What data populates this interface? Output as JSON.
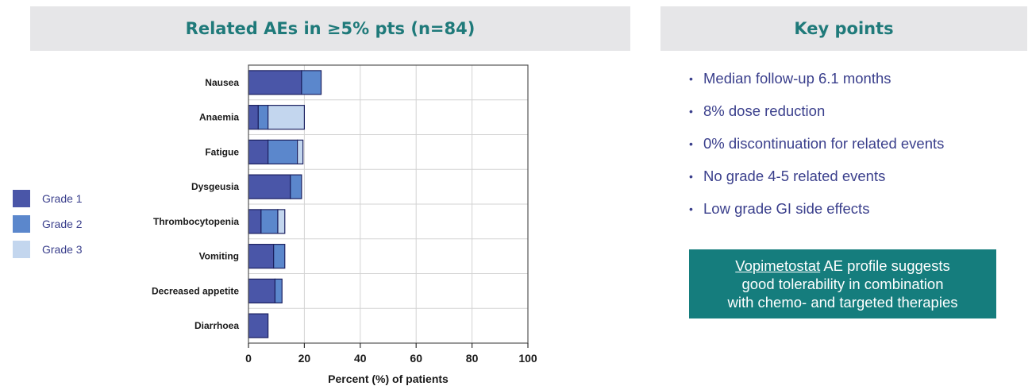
{
  "left_panel": {
    "title": "Related AEs in ≥5% pts (n=84)"
  },
  "right_panel": {
    "title": "Key points",
    "bullets": [
      "Median follow-up 6.1 months",
      "8% dose reduction",
      "0% discontinuation for related events",
      "No grade 4-5 related events",
      "Low grade GI side effects"
    ],
    "callout": {
      "underlined": "Vopimetostat",
      "line1_rest": " AE profile suggests",
      "line2": "good tolerability in combination",
      "line3": "with chemo- and targeted therapies"
    }
  },
  "legend": [
    {
      "label": "Grade 1",
      "color": "#4a56a8"
    },
    {
      "label": "Grade 2",
      "color": "#5b87cc"
    },
    {
      "label": "Grade 3",
      "color": "#c3d6ee"
    }
  ],
  "chart_data": {
    "type": "bar",
    "orientation": "horizontal",
    "stacked": true,
    "categories": [
      "Nausea",
      "Anaemia",
      "Fatigue",
      "Dysgeusia",
      "Thrombocytopenia",
      "Vomiting",
      "Decreased appetite",
      "Diarrhoea"
    ],
    "series": [
      {
        "name": "Grade 1",
        "values": [
          19,
          3.5,
          7,
          15,
          4.5,
          9,
          9.5,
          7
        ]
      },
      {
        "name": "Grade 2",
        "values": [
          7,
          3.5,
          10.5,
          4,
          6,
          4,
          2.5,
          0
        ]
      },
      {
        "name": "Grade 3",
        "values": [
          0,
          13,
          2,
          0,
          2.5,
          0,
          0,
          0
        ]
      }
    ],
    "xlabel": "Percent (%) of patients",
    "ylabel": "",
    "xlim": [
      0,
      100
    ],
    "xticks": [
      0,
      20,
      40,
      60,
      80,
      100
    ],
    "grid": true,
    "legend_position": "left"
  }
}
